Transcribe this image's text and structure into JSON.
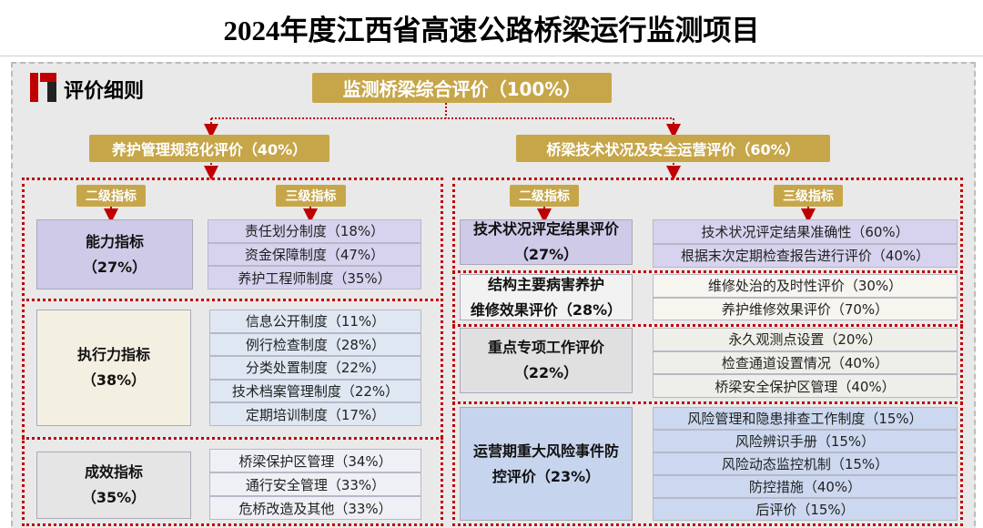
{
  "title": "2024年度江西省高速公路桥梁运行监测项目",
  "section_label": "评价细则",
  "root": "监测桥梁综合评价（100%）",
  "branches": [
    {
      "label": "养护管理规范化评价（40%）",
      "level2_header": "二级指标",
      "level3_header": "三级指标",
      "groups": [
        {
          "lines": [
            "能力指标",
            "（27%）"
          ],
          "items": [
            "责任划分制度（18%）",
            "资金保障制度（47%）",
            "养护工程师制度（35%）"
          ]
        },
        {
          "lines": [
            "执行力指标",
            "（38%）"
          ],
          "items": [
            "信息公开制度（11%）",
            "例行检查制度（28%）",
            "分类处置制度（22%）",
            "技术档案管理制度（22%）",
            "定期培训制度（17%）"
          ]
        },
        {
          "lines": [
            "成效指标",
            "（35%）"
          ],
          "items": [
            "桥梁保护区管理（34%）",
            "通行安全管理（33%）",
            "危桥改造及其他（33%）"
          ]
        }
      ]
    },
    {
      "label": "桥梁技术状况及安全运营评价（60%）",
      "level2_header": "二级指标",
      "level3_header": "三级指标",
      "groups": [
        {
          "lines": [
            "技术状况评定结果评价",
            "（27%）"
          ],
          "items": [
            "技术状况评定结果准确性（60%）",
            "根据末次定期检查报告进行评价（40%）"
          ]
        },
        {
          "lines": [
            "结构主要病害养护",
            "维修效果评价（28%）"
          ],
          "items": [
            "维修处治的及时性评价（30%）",
            "养护维修效果评价（70%）"
          ]
        },
        {
          "lines": [
            "重点专项工作评价",
            "（22%）"
          ],
          "items": [
            "永久观测点设置（20%）",
            "检查通道设置情况（40%）",
            "桥梁安全保护区管理（40%）"
          ]
        },
        {
          "lines": [
            "运营期重大风险事件防",
            "控评价（23%）"
          ],
          "items": [
            "风险管理和隐患排查工作制度（15%）",
            "风险辨识手册（15%）",
            "风险动态监控机制（15%）",
            "防控措施（40%）",
            "后评价（15%）"
          ]
        }
      ]
    }
  ]
}
